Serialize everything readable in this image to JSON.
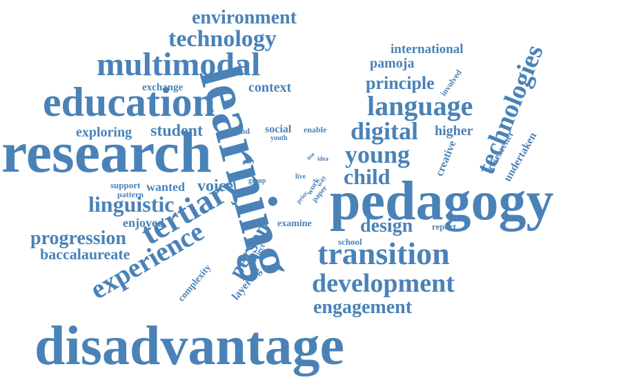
{
  "color": "#4a82b8",
  "words": {
    "disadvantage": "disadvantage",
    "research": "research",
    "pedagogy": "pedagogy",
    "learning": "learning",
    "education": "education",
    "multimodal": "multimodal",
    "transition": "transition",
    "tertiary": "tertiary",
    "technologies": "technologies",
    "development": "development",
    "experience": "experience",
    "technology": "technology",
    "environment": "environment",
    "language": "language",
    "digital": "digital",
    "young": "young",
    "child": "child",
    "design": "design",
    "linguistic": "linguistic",
    "progression": "progression",
    "baccalaureate": "baccalaureate",
    "engagement": "engagement",
    "person": "person",
    "principle": "principle",
    "international": "international",
    "pamoja": "pamoja",
    "context": "context",
    "exchange": "exchange",
    "student": "student",
    "exploring": "exploring",
    "voice": "voice",
    "higher": "higher",
    "enjoyed": "enjoyed",
    "wanted": "wanted",
    "support": "support",
    "pattern": "pattern",
    "social": "social",
    "extend": "extend",
    "enable": "enable",
    "youth": "youth",
    "examine": "examine",
    "report": "report",
    "school": "school",
    "creative": "creative",
    "researcher": "researcher",
    "undertaken": "undertaken",
    "involved": "involved",
    "complexity": "complexity",
    "layering": "layering",
    "project": "project",
    "group": "group",
    "live": "live",
    "work": "work",
    "paper": "paper",
    "way": "way",
    "prior": "prior",
    "use": "use",
    "idea": "idea",
    "part": "part"
  }
}
